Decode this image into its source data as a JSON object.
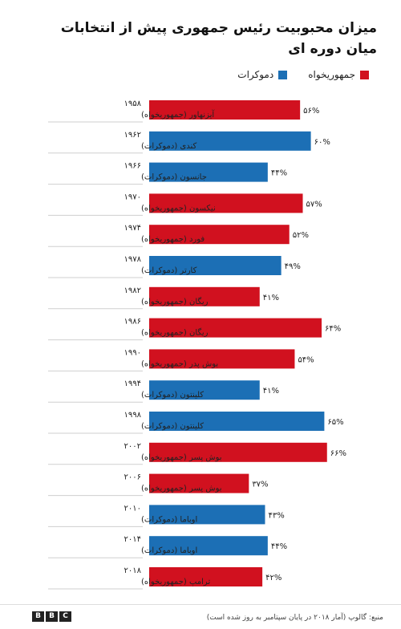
{
  "title_line1": "میزان محبوبیت رئیس جمهوری پیش از انتخابات",
  "title_line2": "میان دوره ای",
  "legend": {
    "republican": "جمهوریخواه",
    "democrat": "دموکرات"
  },
  "colors": {
    "republican": "#d1111f",
    "democrat": "#1c6fb5"
  },
  "source": "منبع: گالوپ (آمار ۲۰۱۸ در پایان سپتامبر به روز شده است)",
  "logo_letters": [
    "B",
    "B",
    "C"
  ],
  "chart_data": {
    "type": "bar",
    "orientation": "horizontal",
    "value_suffix": "%",
    "categories": [
      {
        "year": "۱۹۵۸",
        "name": "آیزنهاور (جمهوریخواه)",
        "party": "republican",
        "value": 56,
        "label": "۵۶%"
      },
      {
        "year": "۱۹۶۲",
        "name": "کندی (دموکرات)",
        "party": "democrat",
        "value": 60,
        "label": "۶۰%"
      },
      {
        "year": "۱۹۶۶",
        "name": "جانسون (دموکرات)",
        "party": "democrat",
        "value": 44,
        "label": "۴۴%"
      },
      {
        "year": "۱۹۷۰",
        "name": "نیکسون (جمهوریخواه)",
        "party": "republican",
        "value": 57,
        "label": "۵۷%"
      },
      {
        "year": "۱۹۷۴",
        "name": "فورد (جمهوریخواه)",
        "party": "republican",
        "value": 52,
        "label": "۵۲%"
      },
      {
        "year": "۱۹۷۸",
        "name": "کارتر (دموکرات)",
        "party": "democrat",
        "value": 49,
        "label": "۴۹%"
      },
      {
        "year": "۱۹۸۲",
        "name": "ریگان (جمهوریخواه)",
        "party": "republican",
        "value": 41,
        "label": "۴۱%"
      },
      {
        "year": "۱۹۸۶",
        "name": "ریگان (جمهوریخواه)",
        "party": "republican",
        "value": 64,
        "label": "۶۴%"
      },
      {
        "year": "۱۹۹۰",
        "name": "بوش پدر (جمهوریخواه)",
        "party": "republican",
        "value": 54,
        "label": "۵۴%"
      },
      {
        "year": "۱۹۹۴",
        "name": "کلینتون (دموکرات)",
        "party": "democrat",
        "value": 41,
        "label": "۴۱%"
      },
      {
        "year": "۱۹۹۸",
        "name": "کلینتون (دموکرات)",
        "party": "democrat",
        "value": 65,
        "label": "۶۵%"
      },
      {
        "year": "۲۰۰۲",
        "name": "بوش پسر (جمهوریخواه)",
        "party": "republican",
        "value": 66,
        "label": "۶۶%"
      },
      {
        "year": "۲۰۰۶",
        "name": "بوش پسر (جمهوریخواه)",
        "party": "republican",
        "value": 37,
        "label": "۳۷%"
      },
      {
        "year": "۲۰۱۰",
        "name": "اوباما (دموکرات)",
        "party": "democrat",
        "value": 43,
        "label": "۴۳%"
      },
      {
        "year": "۲۰۱۴",
        "name": "اوباما (دموکرات)",
        "party": "democrat",
        "value": 44,
        "label": "۴۴%"
      },
      {
        "year": "۲۰۱۸",
        "name": "ترامپ (جمهوریخواه)",
        "party": "republican",
        "value": 42,
        "label": "۴۲%"
      }
    ]
  }
}
